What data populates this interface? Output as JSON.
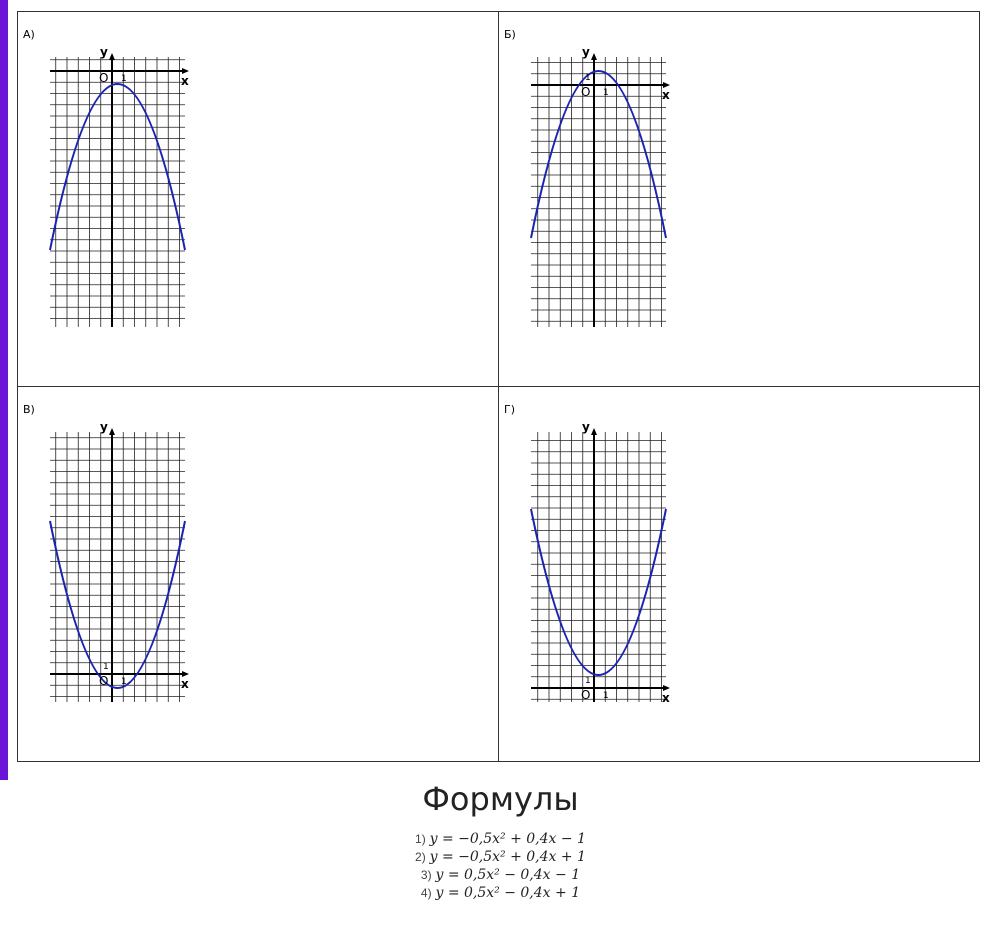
{
  "panels": [
    {
      "label": "А)",
      "y_axis": "y",
      "x_axis": "x",
      "origin": "O",
      "unit_x": "1"
    },
    {
      "label": "Б)",
      "y_axis": "y",
      "x_axis": "x",
      "origin": "O",
      "unit_x": "1",
      "unit_y": "1"
    },
    {
      "label": "В)",
      "y_axis": "y",
      "x_axis": "x",
      "origin": "O",
      "unit_x": "1",
      "unit_y": "1"
    },
    {
      "label": "Г)",
      "y_axis": "y",
      "x_axis": "x",
      "origin": "O",
      "unit_x": "1",
      "unit_y": "1"
    }
  ],
  "formulas": {
    "title": "Формулы",
    "items": [
      {
        "number": "1)",
        "formula": "y = −0,5x² + 0,4x − 1"
      },
      {
        "number": "2)",
        "formula": "y = −0,5x² + 0,4x + 1"
      },
      {
        "number": "3)",
        "formula": "y = 0,5x² − 0,4x − 1"
      },
      {
        "number": "4)",
        "formula": "y = 0,5x² − 0,4x + 1"
      }
    ]
  }
}
